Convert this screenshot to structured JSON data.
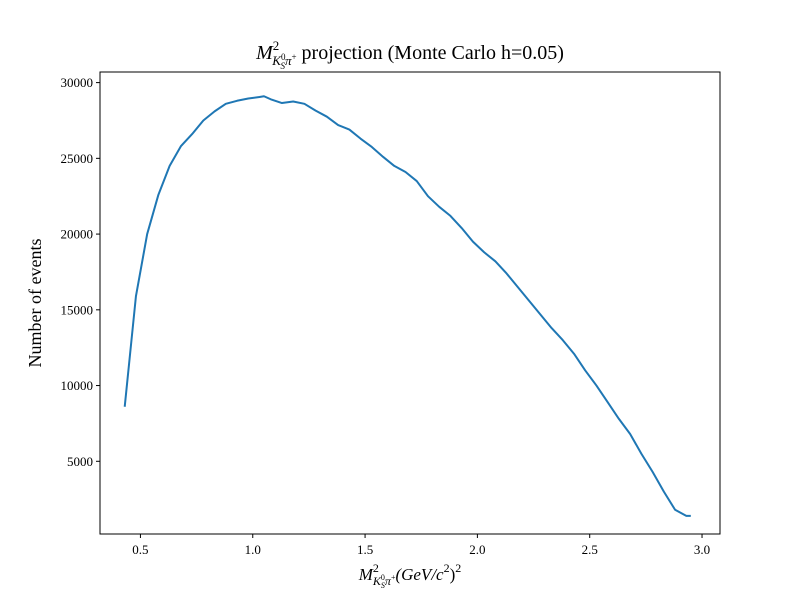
{
  "chart_data": {
    "type": "line",
    "title": {
      "prefix": "M",
      "sup": "2",
      "sub_main": "K",
      "sub_sup": "0",
      "sub_sub": "S",
      "sub_tail": "π",
      "sub_tail_sup": "+",
      "suffix": " projection (Monte Carlo h=0.05)"
    },
    "xlabel": {
      "prefix": "M",
      "sup": "2",
      "sub_main": "K",
      "sub_sup": "0",
      "sub_sub": "S",
      "sub_tail": "π",
      "sub_tail_sup": "+",
      "suffix_open": "(GeV/c",
      "suffix_sup": "2",
      "suffix_close": ")",
      "suffix_close_sup": "2"
    },
    "ylabel": "Number of events",
    "xlim": [
      0.32,
      3.08
    ],
    "ylim": [
      200,
      30700
    ],
    "xticks": [
      0.5,
      1.0,
      1.5,
      2.0,
      2.5,
      3.0
    ],
    "xtick_labels": [
      "0.5",
      "1.0",
      "1.5",
      "2.0",
      "2.5",
      "3.0"
    ],
    "yticks": [
      5000,
      10000,
      15000,
      20000,
      25000,
      30000
    ],
    "ytick_labels": [
      "5000",
      "10000",
      "15000",
      "20000",
      "25000",
      "30000"
    ],
    "grid": false,
    "color": "#1f77b4",
    "x": [
      0.43,
      0.48,
      0.53,
      0.58,
      0.63,
      0.68,
      0.73,
      0.78,
      0.83,
      0.88,
      0.93,
      0.98,
      1.03,
      1.05,
      1.08,
      1.13,
      1.18,
      1.23,
      1.28,
      1.33,
      1.38,
      1.43,
      1.48,
      1.53,
      1.58,
      1.63,
      1.68,
      1.73,
      1.78,
      1.83,
      1.88,
      1.93,
      1.98,
      2.03,
      2.08,
      2.13,
      2.18,
      2.23,
      2.28,
      2.33,
      2.38,
      2.43,
      2.48,
      2.53,
      2.58,
      2.63,
      2.68,
      2.73,
      2.78,
      2.83,
      2.88,
      2.93,
      2.95
    ],
    "y": [
      8600,
      15900,
      20000,
      22600,
      24500,
      25800,
      26600,
      27500,
      28100,
      28600,
      28800,
      28950,
      29050,
      29100,
      28900,
      28650,
      28750,
      28600,
      28150,
      27750,
      27200,
      26900,
      26300,
      25750,
      25100,
      24500,
      24100,
      23500,
      22500,
      21800,
      21200,
      20400,
      19500,
      18800,
      18200,
      17400,
      16500,
      15600,
      14700,
      13800,
      13000,
      12100,
      11000,
      10000,
      8900,
      7800,
      6800,
      5500,
      4300,
      3000,
      1800,
      1400,
      1400
    ]
  }
}
